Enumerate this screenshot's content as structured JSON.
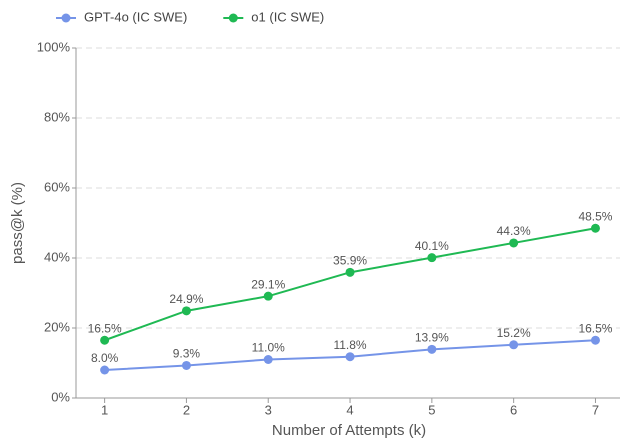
{
  "chart_data": {
    "type": "line",
    "x_label": "Number of Attempts (k)",
    "y_label": "pass@k (%)",
    "x": [
      1,
      2,
      3,
      4,
      5,
      6,
      7
    ],
    "xlim": [
      0.65,
      7.3
    ],
    "xticks": [
      1,
      2,
      3,
      4,
      5,
      6,
      7
    ],
    "ylim": [
      0,
      100
    ],
    "yticks": [
      {
        "value": 0,
        "label": "0%"
      },
      {
        "value": 20,
        "label": "20%"
      },
      {
        "value": 40,
        "label": "40%"
      },
      {
        "value": 60,
        "label": "60%"
      },
      {
        "value": 80,
        "label": "80%"
      },
      {
        "value": 100,
        "label": "100%"
      }
    ],
    "grid": true,
    "legend": "top-left",
    "series": [
      {
        "name": "GPT-4o (IC SWE)",
        "color": "#7594e8",
        "values": [
          8.0,
          9.3,
          11.0,
          11.8,
          13.9,
          15.2,
          16.5
        ],
        "value_labels": [
          "8.0%",
          "9.3%",
          "11.0%",
          "11.8%",
          "13.9%",
          "15.2%",
          "16.5%"
        ]
      },
      {
        "name": "o1 (IC SWE)",
        "color": "#1fb953",
        "values": [
          16.5,
          24.9,
          29.1,
          35.9,
          40.1,
          44.3,
          48.5
        ],
        "value_labels": [
          "16.5%",
          "24.9%",
          "29.1%",
          "35.9%",
          "40.1%",
          "44.3%",
          "48.5%"
        ]
      }
    ]
  }
}
